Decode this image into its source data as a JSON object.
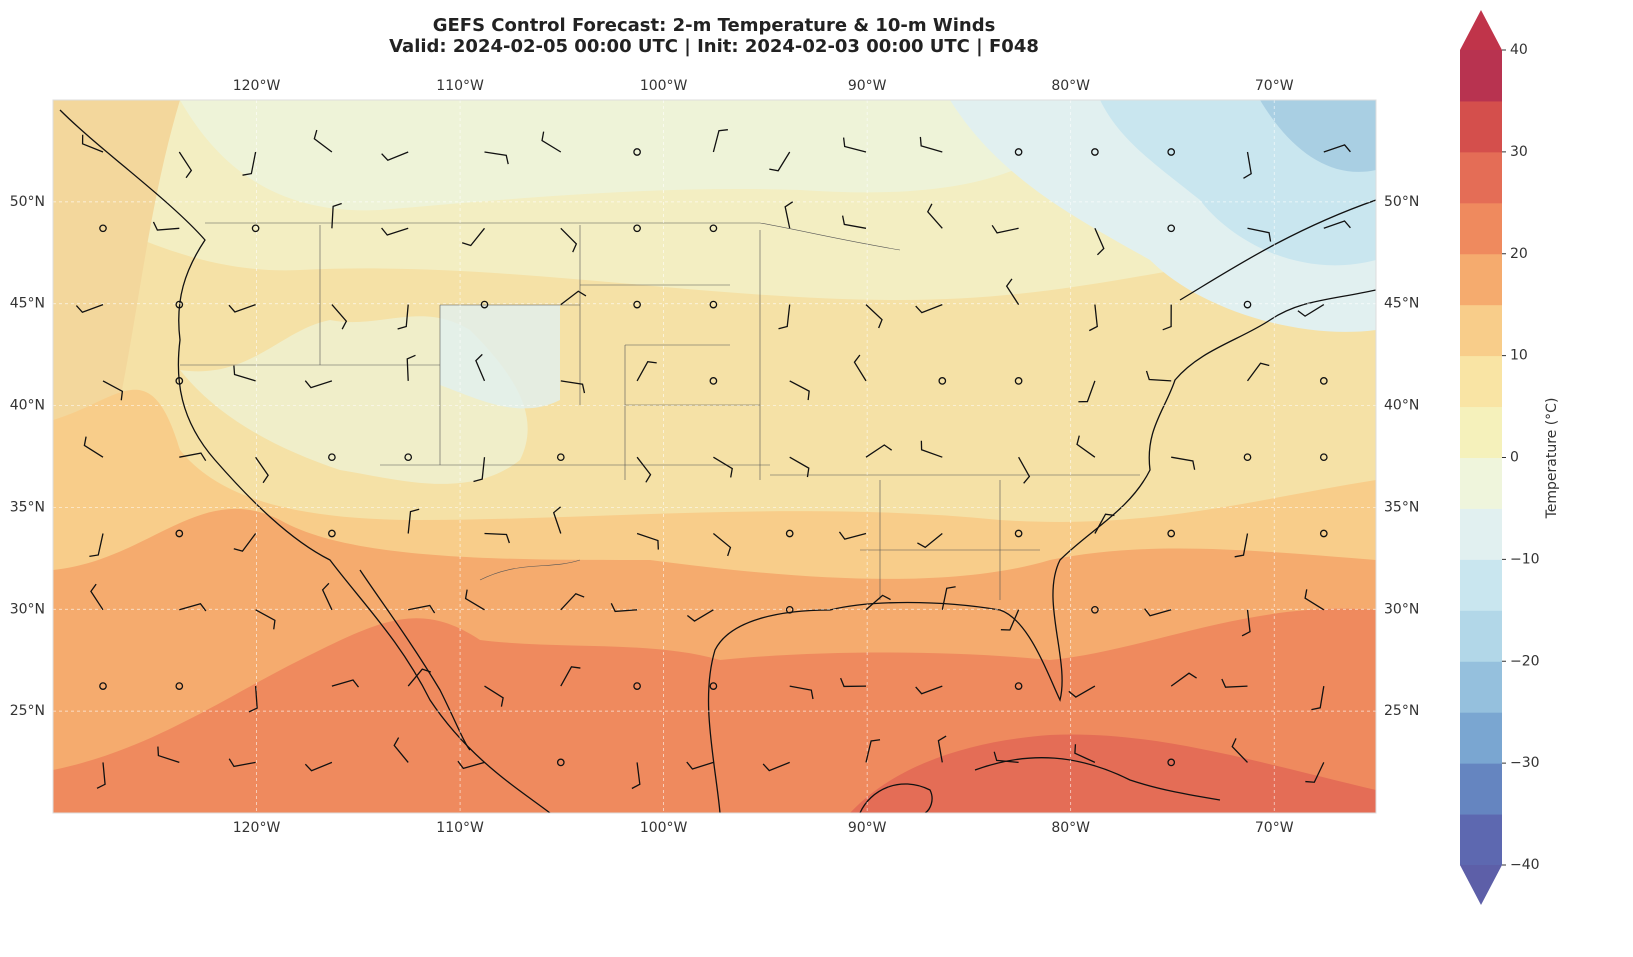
{
  "header": {
    "title": "GEFS Control Forecast: 2-m Temperature & 10-m Winds",
    "subtitle": "Valid: 2024-02-05 00:00 UTC | Init: 2024-02-03 00:00 UTC | F048"
  },
  "map": {
    "xlim": [
      -130,
      -65
    ],
    "ylim": [
      20,
      55
    ],
    "xticks": [
      {
        "value": -120,
        "label": "120°W"
      },
      {
        "value": -110,
        "label": "110°W"
      },
      {
        "value": -100,
        "label": "100°W"
      },
      {
        "value": -90,
        "label": "90°W"
      },
      {
        "value": -80,
        "label": "80°W"
      },
      {
        "value": -70,
        "label": "70°W"
      }
    ],
    "yticks": [
      {
        "value": 25,
        "label": "25°N"
      },
      {
        "value": 30,
        "label": "30°N"
      },
      {
        "value": 35,
        "label": "35°N"
      },
      {
        "value": 40,
        "label": "40°N"
      },
      {
        "value": 45,
        "label": "45°N"
      },
      {
        "value": 50,
        "label": "50°N"
      }
    ],
    "grid": true
  },
  "colorbar": {
    "label": "Temperature (°C)",
    "lim": [
      -40,
      40
    ],
    "ticks": [
      {
        "value": -40,
        "label": "−40"
      },
      {
        "value": -30,
        "label": "−30"
      },
      {
        "value": -20,
        "label": "−20"
      },
      {
        "value": -10,
        "label": "−10"
      },
      0,
      10,
      20,
      30,
      40
    ],
    "colors": [
      "#5d68b0",
      "#6585c0",
      "#7aa6d1",
      "#95c0dd",
      "#b2d7e8",
      "#c9e6ef",
      "#e1f0f0",
      "#eff5dc",
      "#f5f1bb",
      "#f9e4a4",
      "#f8cd8a",
      "#f5ab6e",
      "#ef8a5e",
      "#e46d56",
      "#d44f4c",
      "#b83350"
    ],
    "under_color": "#5d5fa8",
    "over_color": "#c0344a"
  }
}
